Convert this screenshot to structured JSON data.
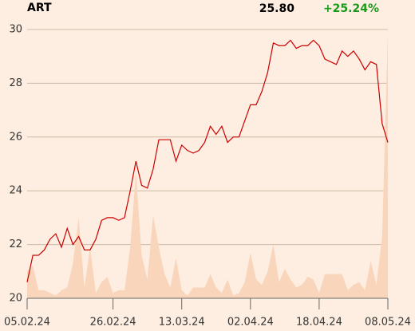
{
  "chart_data": {
    "type": "line",
    "title": "ART",
    "price": "25.80",
    "change": "+25.24%",
    "change_color": "#1a9a1a",
    "xlim": [
      0,
      63
    ],
    "xticks": [
      {
        "value": 0,
        "label": "05.02.24"
      },
      {
        "value": 15,
        "label": "26.02.24"
      },
      {
        "value": 27,
        "label": "13.03.24"
      },
      {
        "value": 39,
        "label": "02.04.24"
      },
      {
        "value": 51,
        "label": "18.04.24"
      },
      {
        "value": 63,
        "label": "08.05.24"
      }
    ],
    "ylim": [
      20,
      30
    ],
    "yticks": [
      20,
      22,
      24,
      26,
      28,
      30
    ],
    "grid": true,
    "series": [
      {
        "color": "#cc0000",
        "values": [
          20.6,
          21.6,
          21.6,
          21.8,
          22.2,
          22.4,
          21.9,
          22.6,
          22.0,
          22.3,
          21.8,
          21.8,
          22.2,
          22.9,
          23.0,
          23.0,
          22.9,
          23.0,
          24.0,
          25.1,
          24.2,
          24.1,
          24.8,
          25.9,
          25.9,
          25.9,
          25.1,
          25.7,
          25.5,
          25.4,
          25.5,
          25.8,
          26.4,
          26.1,
          26.4,
          25.8,
          26.0,
          26.0,
          26.6,
          27.2,
          27.2,
          27.7,
          28.4,
          29.5,
          29.4,
          29.4,
          29.6,
          29.3,
          29.4,
          29.4,
          29.6,
          29.4,
          28.9,
          28.8,
          28.7,
          29.2,
          29.0,
          29.2,
          28.9,
          28.5,
          28.8,
          28.7,
          26.5,
          25.8
        ]
      }
    ],
    "volume": {
      "color": "#f9d6bb",
      "values": [
        21.0,
        21.2,
        20.3,
        20.3,
        20.2,
        20.1,
        20.3,
        20.4,
        21.3,
        23.0,
        20.4,
        21.9,
        20.2,
        20.6,
        20.8,
        20.2,
        20.3,
        20.3,
        21.9,
        24.7,
        21.6,
        20.7,
        23.1,
        21.9,
        20.9,
        20.4,
        21.5,
        20.3,
        20.1,
        20.4,
        20.4,
        20.4,
        20.9,
        20.4,
        20.2,
        20.7,
        20.1,
        20.2,
        20.6,
        21.7,
        20.7,
        20.5,
        21.0,
        22.0,
        20.6,
        21.1,
        20.7,
        20.4,
        20.5,
        20.8,
        20.7,
        20.2,
        20.9,
        20.9,
        20.9,
        20.9,
        20.3,
        20.5,
        20.6,
        20.3,
        21.4,
        20.5,
        22.3,
        29.9
      ]
    }
  }
}
